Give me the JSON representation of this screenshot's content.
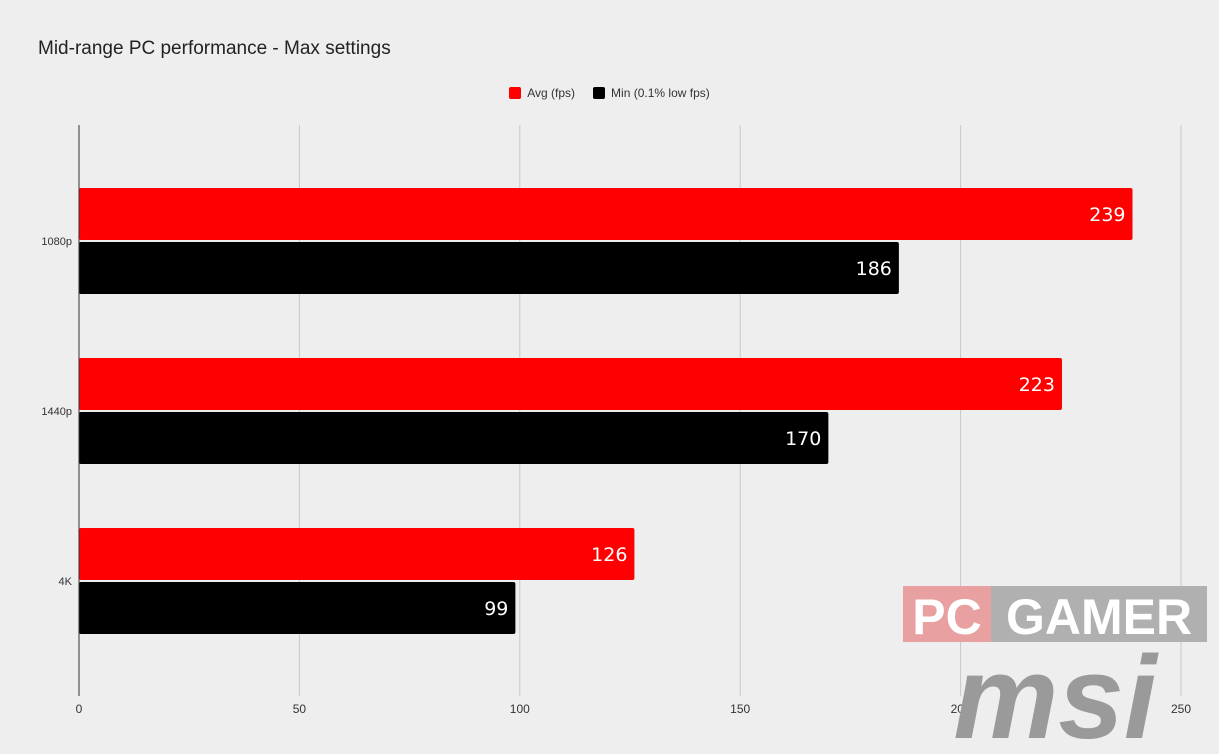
{
  "chart_data": {
    "type": "bar",
    "orientation": "horizontal",
    "title": "Mid-range PC performance - Max settings",
    "categories": [
      "1080p",
      "1440p",
      "4K"
    ],
    "series": [
      {
        "name": "Avg (fps)",
        "color": "#ff0000",
        "values": [
          239,
          223,
          126
        ]
      },
      {
        "name": "Min (0.1% low fps)",
        "color": "#000000",
        "values": [
          186,
          170,
          99
        ]
      }
    ],
    "xlim": [
      0,
      250
    ],
    "xticks": [
      0,
      50,
      100,
      150,
      200,
      250
    ],
    "grid": true,
    "legend_position": "top-center",
    "data_label_color": "#ffffff"
  },
  "watermark": {
    "pc_gamer_logo": {
      "text_pc": "PC",
      "text_gamer": "GAMER"
    },
    "msi_logo": {
      "text": "msi"
    }
  }
}
